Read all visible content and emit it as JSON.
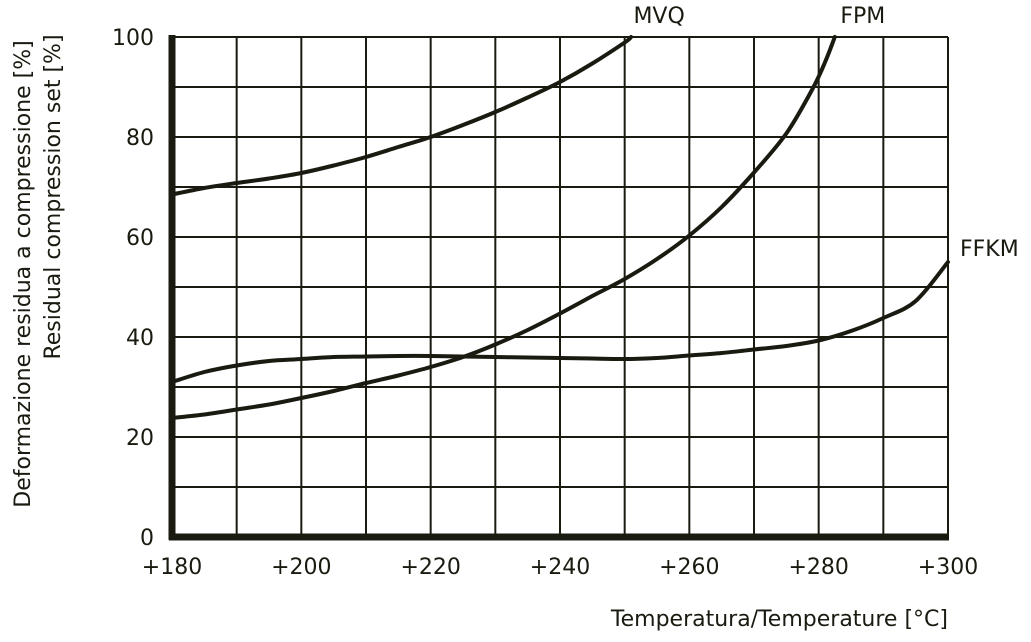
{
  "chart_data": {
    "type": "line",
    "xlabel": "Temperatura/Temperature [°C]",
    "ylabel_lines": [
      "Deformazione residua a compressione [%]",
      "Residual compression set [%]"
    ],
    "xlim": [
      180,
      300
    ],
    "ylim": [
      0,
      100
    ],
    "x_ticks": [
      180,
      190,
      200,
      210,
      220,
      230,
      240,
      250,
      260,
      270,
      280,
      290,
      300
    ],
    "x_tick_labels": [
      "+180",
      "",
      "+200",
      "",
      "+220",
      "",
      "+240",
      "",
      "+260",
      "",
      "+280",
      "",
      "+300"
    ],
    "y_ticks": [
      0,
      10,
      20,
      30,
      40,
      50,
      60,
      70,
      80,
      90,
      100
    ],
    "y_tick_labels": [
      "0",
      "",
      "20",
      "",
      "40",
      "",
      "60",
      "",
      "80",
      "",
      "100"
    ],
    "grid": true,
    "line_color": "#1a1a10",
    "series": [
      {
        "name": "MVQ",
        "points": [
          [
            180,
            68.5
          ],
          [
            185,
            69.8
          ],
          [
            190,
            70.8
          ],
          [
            195,
            71.7
          ],
          [
            200,
            72.8
          ],
          [
            205,
            74.3
          ],
          [
            210,
            76.0
          ],
          [
            215,
            78.0
          ],
          [
            220,
            80.0
          ],
          [
            225,
            82.4
          ],
          [
            230,
            85.0
          ],
          [
            235,
            87.9
          ],
          [
            240,
            91.0
          ],
          [
            245,
            94.7
          ],
          [
            250,
            98.9
          ],
          [
            251,
            100
          ]
        ]
      },
      {
        "name": "FPM",
        "points": [
          [
            180,
            23.8
          ],
          [
            185,
            24.5
          ],
          [
            190,
            25.5
          ],
          [
            195,
            26.5
          ],
          [
            200,
            27.8
          ],
          [
            205,
            29.2
          ],
          [
            210,
            30.8
          ],
          [
            215,
            32.3
          ],
          [
            220,
            34.0
          ],
          [
            225,
            36.0
          ],
          [
            230,
            38.5
          ],
          [
            235,
            41.4
          ],
          [
            240,
            44.7
          ],
          [
            245,
            48.2
          ],
          [
            250,
            51.6
          ],
          [
            255,
            55.6
          ],
          [
            260,
            60.3
          ],
          [
            265,
            66.0
          ],
          [
            270,
            72.9
          ],
          [
            275,
            80.7
          ],
          [
            279,
            89.5
          ],
          [
            281,
            95.0
          ],
          [
            282.5,
            100
          ]
        ]
      },
      {
        "name": "FFKM",
        "points": [
          [
            180,
            31.0
          ],
          [
            185,
            33.0
          ],
          [
            190,
            34.3
          ],
          [
            195,
            35.2
          ],
          [
            200,
            35.6
          ],
          [
            205,
            36.0
          ],
          [
            210,
            36.1
          ],
          [
            215,
            36.2
          ],
          [
            220,
            36.2
          ],
          [
            225,
            36.1
          ],
          [
            230,
            36.0
          ],
          [
            235,
            35.9
          ],
          [
            240,
            35.8
          ],
          [
            245,
            35.7
          ],
          [
            250,
            35.6
          ],
          [
            255,
            35.8
          ],
          [
            260,
            36.3
          ],
          [
            265,
            36.8
          ],
          [
            270,
            37.5
          ],
          [
            275,
            38.2
          ],
          [
            280,
            39.3
          ],
          [
            285,
            41.2
          ],
          [
            290,
            43.8
          ],
          [
            295,
            47.2
          ],
          [
            300,
            55.0
          ]
        ]
      }
    ]
  }
}
